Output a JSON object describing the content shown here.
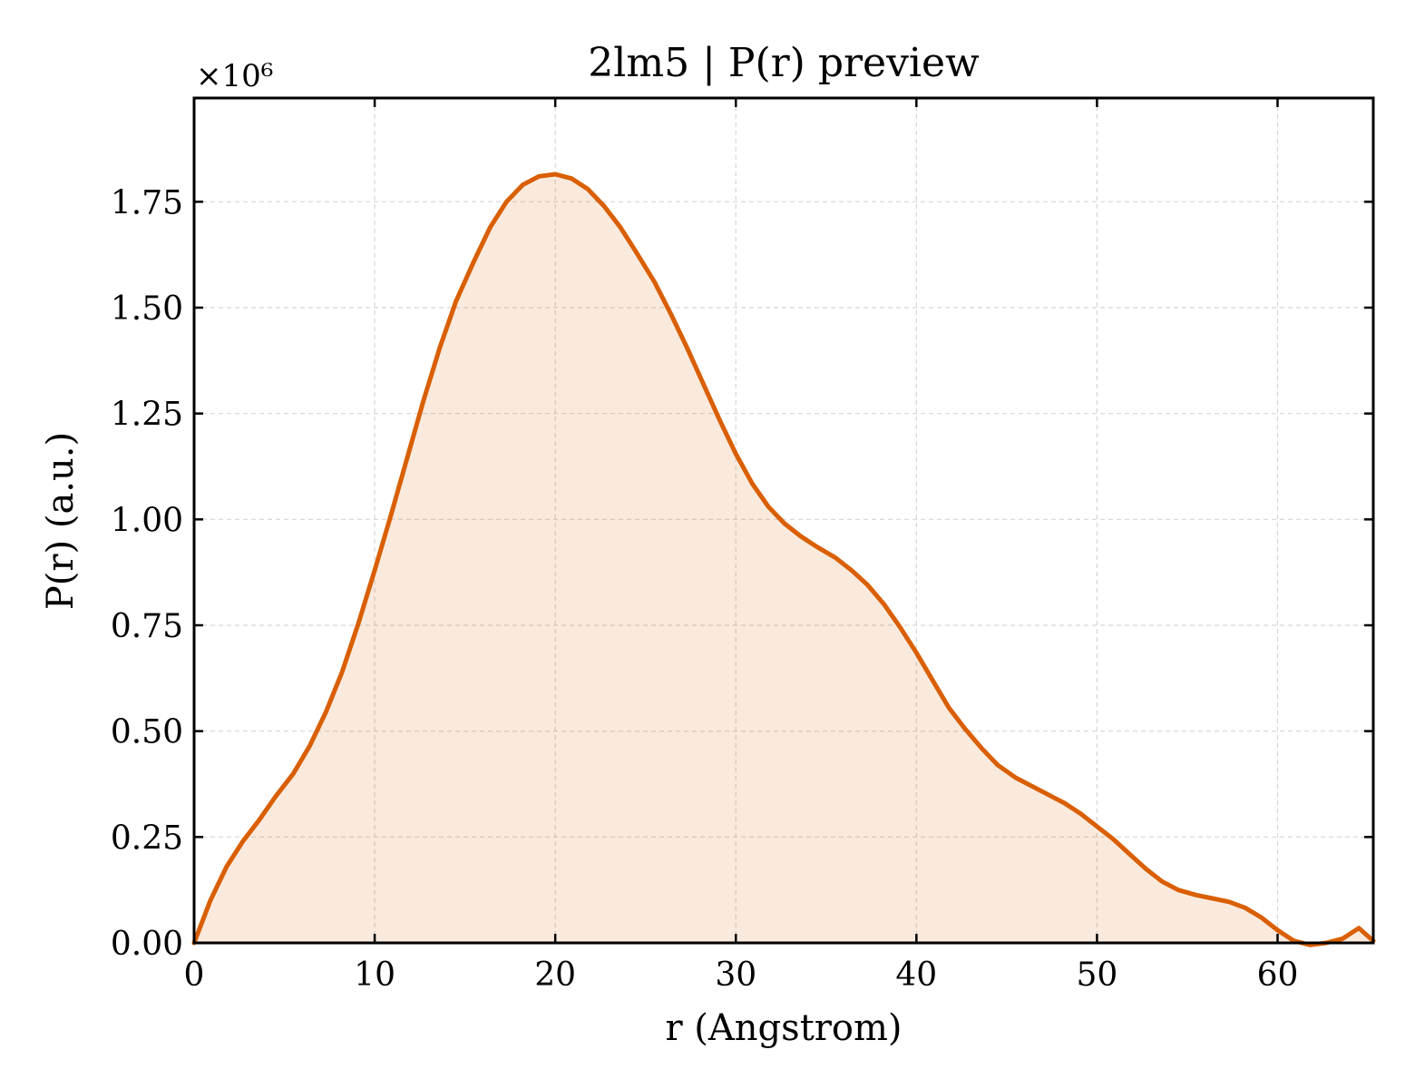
{
  "chart_data": {
    "type": "area",
    "title": "2lm5 | P(r) preview",
    "xlabel": "r (Angstrom)",
    "ylabel": "P(r) (a.u.)",
    "y_offset_label": "×10⁶",
    "y_scale": 1000000,
    "xlim": [
      0,
      65.3
    ],
    "ylim": [
      0,
      1.995
    ],
    "xticks": [
      0,
      10,
      20,
      30,
      40,
      50,
      60
    ],
    "xtick_labels": [
      "0",
      "10",
      "20",
      "30",
      "40",
      "50",
      "60"
    ],
    "yticks": [
      0,
      0.25,
      0.5,
      0.75,
      1.0,
      1.25,
      1.5,
      1.75
    ],
    "ytick_labels": [
      "0.00",
      "0.25",
      "0.50",
      "0.75",
      "1.00",
      "1.25",
      "1.50",
      "1.75"
    ],
    "grid": true,
    "line_color": "#d95f02",
    "fill_color": "#d95f02",
    "fill_opacity": 0.13,
    "series": [
      {
        "x": [
          0,
          0.9,
          1.8,
          2.7,
          3.6,
          4.5,
          5.5,
          6.4,
          7.3,
          8.2,
          9.1,
          10.0,
          10.9,
          11.8,
          12.7,
          13.6,
          14.5,
          15.5,
          16.4,
          17.3,
          18.2,
          19.1,
          20.0,
          20.9,
          21.8,
          22.7,
          23.6,
          24.5,
          25.5,
          26.4,
          27.3,
          28.2,
          29.1,
          30.0,
          30.9,
          31.8,
          32.7,
          33.6,
          34.5,
          35.5,
          36.4,
          37.3,
          38.2,
          39.1,
          40.0,
          40.9,
          41.8,
          42.7,
          43.6,
          44.5,
          45.5,
          46.4,
          47.3,
          48.2,
          49.1,
          50.0,
          50.9,
          51.8,
          52.7,
          53.6,
          54.5,
          55.5,
          56.4,
          57.3,
          58.2,
          59.1,
          60.0,
          60.9,
          61.8,
          62.7,
          63.6,
          64.5,
          65.3
        ],
        "y": [
          0.0,
          0.1,
          0.18,
          0.24,
          0.29,
          0.345,
          0.4,
          0.465,
          0.545,
          0.64,
          0.755,
          0.88,
          1.01,
          1.145,
          1.28,
          1.405,
          1.515,
          1.61,
          1.69,
          1.75,
          1.79,
          1.81,
          1.815,
          1.805,
          1.78,
          1.74,
          1.69,
          1.63,
          1.56,
          1.485,
          1.405,
          1.32,
          1.235,
          1.155,
          1.085,
          1.03,
          0.99,
          0.96,
          0.935,
          0.91,
          0.88,
          0.845,
          0.8,
          0.745,
          0.685,
          0.62,
          0.555,
          0.505,
          0.46,
          0.42,
          0.39,
          0.37,
          0.35,
          0.33,
          0.305,
          0.275,
          0.245,
          0.21,
          0.175,
          0.145,
          0.125,
          0.113,
          0.105,
          0.097,
          0.083,
          0.06,
          0.03,
          0.005,
          -0.005,
          0.0,
          0.01,
          0.035,
          0.005
        ]
      }
    ]
  }
}
